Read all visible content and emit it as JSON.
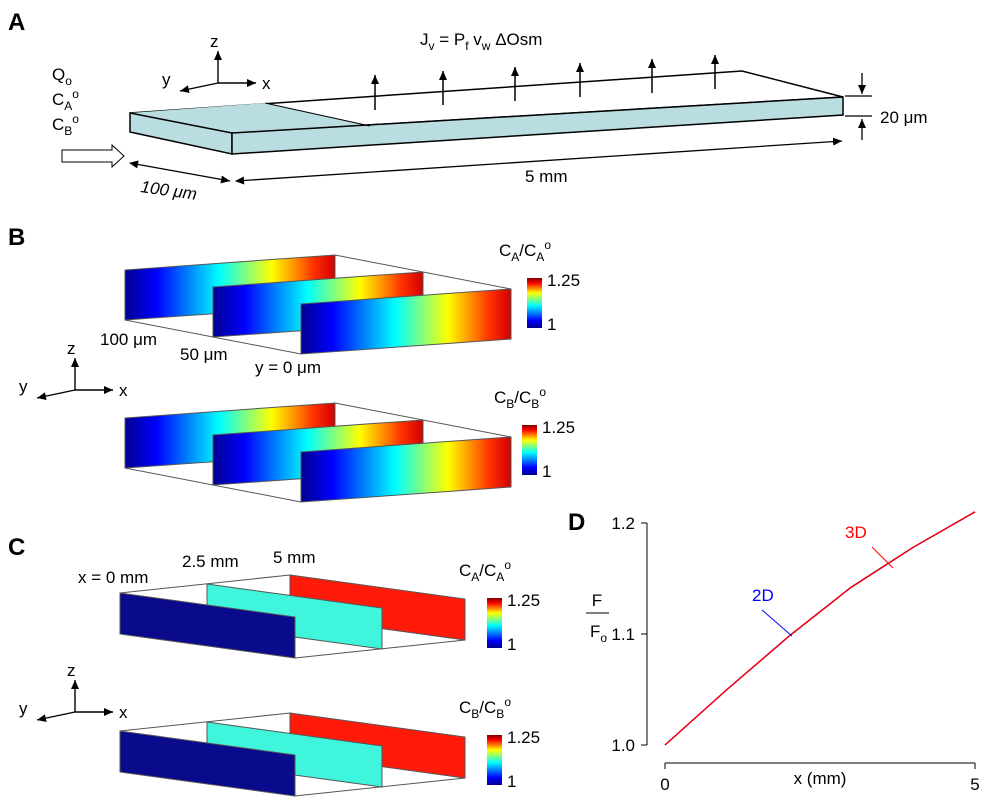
{
  "panel_a": {
    "letter": "A",
    "axes": {
      "z": "z",
      "y": "y",
      "x": "x"
    },
    "flux": [
      "J",
      "v",
      " = P",
      "f",
      " v",
      "w",
      " ΔOsm"
    ],
    "inlet": [
      [
        "Q",
        "o"
      ],
      [
        "C",
        "A",
        "o"
      ],
      [
        "C",
        "B",
        "o"
      ]
    ],
    "height": "20 μm",
    "width": "100 μm",
    "length": "5 mm"
  },
  "panel_b": {
    "letter": "B",
    "axes": {
      "z": "z",
      "y": "y",
      "x": "x"
    },
    "positions": [
      "100 μm",
      "50 μm",
      "y = 0 μm"
    ],
    "colorbars": [
      {
        "label": [
          "C",
          "A",
          "/C",
          "A",
          "o"
        ],
        "max": "1.25",
        "min": "1"
      },
      {
        "label": [
          "C",
          "B",
          "/C",
          "B",
          "o"
        ],
        "max": "1.25",
        "min": "1"
      }
    ]
  },
  "panel_c": {
    "letter": "C",
    "axes": {
      "z": "z",
      "y": "y",
      "x": "x"
    },
    "positions": [
      "x = 0 mm",
      "2.5 mm",
      "5 mm"
    ],
    "colorbars": [
      {
        "label": [
          "C",
          "A",
          "/C",
          "A",
          "o"
        ],
        "max": "1.25",
        "min": "1"
      },
      {
        "label": [
          "C",
          "B",
          "/C",
          "B",
          "o"
        ],
        "max": "1.25",
        "min": "1"
      }
    ]
  },
  "chart_data": {
    "type": "line",
    "panel": "D",
    "x": [
      0,
      1,
      2,
      3,
      4,
      5
    ],
    "series": [
      {
        "name": "2D",
        "color": "#0000ff",
        "values": [
          1.0,
          1.05,
          1.098,
          1.142,
          1.178,
          1.21
        ]
      },
      {
        "name": "3D",
        "color": "#ff0000",
        "values": [
          1.0,
          1.05,
          1.098,
          1.142,
          1.178,
          1.21
        ]
      }
    ],
    "xlim": [
      0,
      5
    ],
    "ylim": [
      1.0,
      1.2
    ],
    "xticks": [
      0,
      5
    ],
    "yticks": [
      {
        "value": 1.0,
        "label": "1.0"
      },
      {
        "value": 1.1,
        "label": "1.1"
      },
      {
        "value": 1.2,
        "label": "1.2"
      }
    ],
    "xlabel": "x (mm)",
    "ylabel": {
      "numerator": "F",
      "denominator": [
        "F",
        "o"
      ]
    }
  }
}
